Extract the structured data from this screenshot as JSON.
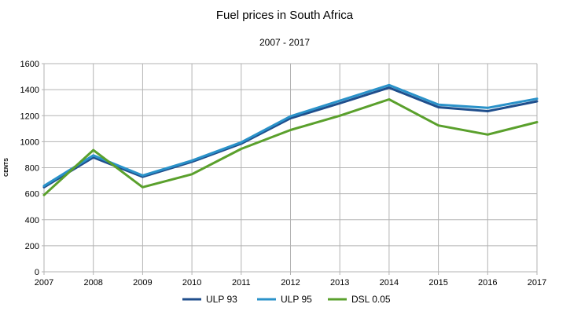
{
  "chart_data": {
    "type": "line",
    "title": "Fuel prices in South Africa",
    "subtitle": "2007 - 2017",
    "xlabel": "",
    "ylabel": "CENTS",
    "x": [
      "2007",
      "2008",
      "2009",
      "2010",
      "2011",
      "2012",
      "2013",
      "2014",
      "2015",
      "2016",
      "2017"
    ],
    "ylim": [
      0,
      1600
    ],
    "yticks": [
      "0",
      "200",
      "400",
      "600",
      "800",
      "1000",
      "1200",
      "1400",
      "1600"
    ],
    "grid": true,
    "legend_position": "bottom",
    "series": [
      {
        "name": "ULP 93",
        "color": "#1f4e8c",
        "values": [
          650,
          880,
          730,
          845,
          985,
          1180,
          1295,
          1415,
          1265,
          1235,
          1310
        ]
      },
      {
        "name": "ULP 95",
        "color": "#2a92c9",
        "values": [
          660,
          895,
          740,
          855,
          995,
          1195,
          1315,
          1435,
          1285,
          1260,
          1330
        ]
      },
      {
        "name": "DSL 0.05",
        "color": "#5aa02c",
        "values": [
          590,
          935,
          650,
          750,
          945,
          1090,
          1200,
          1325,
          1125,
          1055,
          1150
        ]
      }
    ]
  }
}
